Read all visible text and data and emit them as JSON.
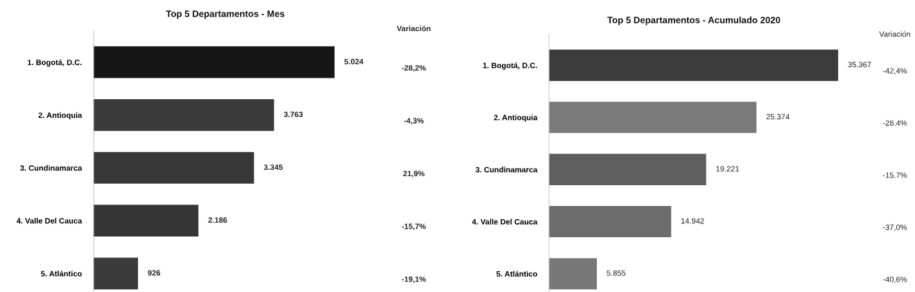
{
  "chart_data": [
    {
      "type": "bar",
      "orientation": "horizontal",
      "title": "Top 5 Departamentos - Mes",
      "categories": [
        "1. Bogotá, D.C.",
        "2. Antioquia",
        "3. Cundinamarca",
        "4. Valle Del Cauca",
        "5. Atlántico"
      ],
      "values": [
        5024,
        3763,
        3345,
        2186,
        926
      ],
      "colors": [
        "#161616",
        "#3a3a3a",
        "#373737",
        "#353535",
        "#3a3a3a"
      ],
      "value_labels": [
        "5.024",
        "3.763",
        "3.345",
        "2.186",
        "926"
      ],
      "tick_labels": "y",
      "annotations": [
        "Variación",
        "-28,2%",
        "-4,3%",
        "21,9%",
        "-15,7%",
        "-19,1%"
      ]
    },
    {
      "type": "bar",
      "orientation": "horizontal",
      "title": "Top 5 Departamentos - Acumulado 2020",
      "categories": [
        "1. Bogotá, D.C.",
        "2. Antioquia",
        "3. Cundinamarca",
        "4. Valle Del Cauca",
        "5. Atlántico"
      ],
      "values": [
        35367,
        25374,
        19221,
        14942,
        5855
      ],
      "colors": [
        "#3c3c3c",
        "#7a7a7a",
        "#5e5e5e",
        "#6c6c6c",
        "#787878"
      ],
      "value_labels": [
        "35.367",
        "25.374",
        "19.221",
        "14.942",
        "5.855"
      ],
      "tick_labels": "y",
      "annotations": [
        "Variación",
        "-42,4%",
        "-28.4%",
        "-15.7%",
        "-37,0%",
        "-40,6%"
      ]
    }
  ]
}
